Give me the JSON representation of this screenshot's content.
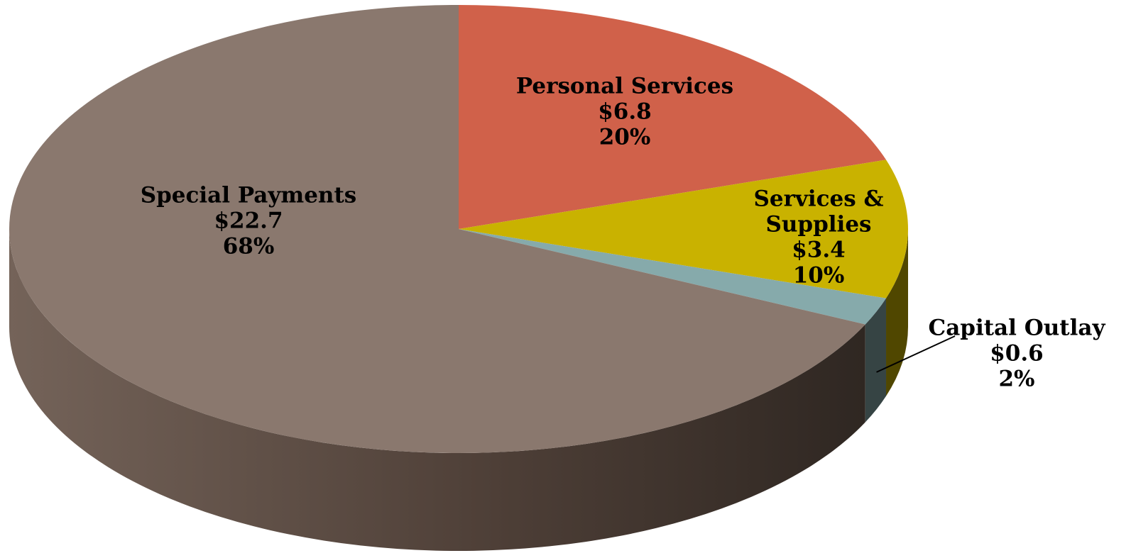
{
  "chart_data": {
    "type": "pie",
    "style": "3d",
    "slices": [
      {
        "label": "Personal Services",
        "label_lines": [
          "Personal Services"
        ],
        "value": 6.8,
        "value_text": "$6.8",
        "percent": 20,
        "percent_text": "20%",
        "color": "#D0614A"
      },
      {
        "label": "Services & Supplies",
        "label_lines": [
          "Services &",
          "Supplies"
        ],
        "value": 3.4,
        "value_text": "$3.4",
        "percent": 10,
        "percent_text": "10%",
        "color": "#C9B200"
      },
      {
        "label": "Capital Outlay",
        "label_lines": [
          "Capital Outlay"
        ],
        "value": 0.6,
        "value_text": "$0.6",
        "percent": 2,
        "percent_text": "2%",
        "color": "#86AAAB"
      },
      {
        "label": "Special Payments",
        "label_lines": [
          "Special Payments"
        ],
        "value": 22.7,
        "value_text": "$22.7",
        "percent": 68,
        "percent_text": "68%",
        "color": "#8A786E"
      }
    ]
  }
}
